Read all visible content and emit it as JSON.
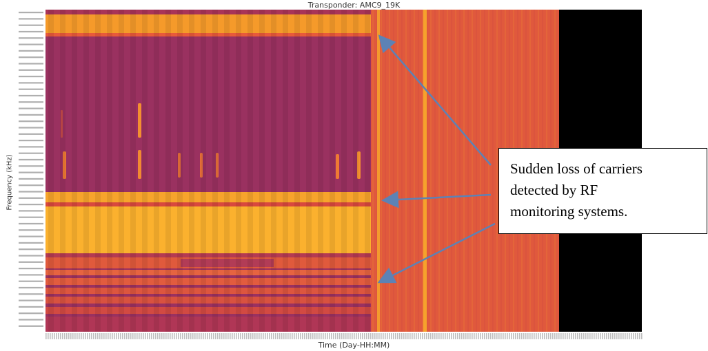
{
  "chart_data": {
    "type": "heatmap",
    "title": "Transponder: AMC9_19K",
    "xlabel": "Time (Day-HH:MM)",
    "ylabel": "Frequency (kHz)",
    "legend": "none",
    "colormap": [
      "#8e2a5c",
      "#b83a52",
      "#e05a3c",
      "#f58a2a",
      "#fbb230"
    ],
    "background_after_data": "#000000",
    "annotation": {
      "lines": [
        "Sudden loss of carriers",
        "detected by RF",
        "monitoring systems."
      ],
      "arrow_color": "#6f8fb5"
    }
  }
}
